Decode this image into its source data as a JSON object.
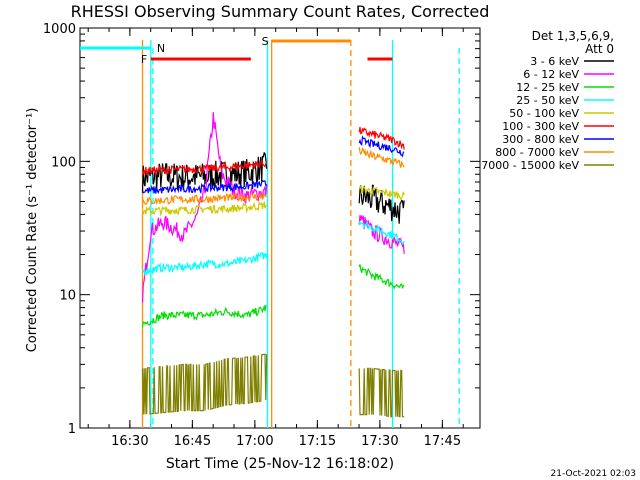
{
  "chart_data": {
    "type": "line",
    "title": "RHESSI Observing Summary Count Rates, Corrected",
    "xlabel": "Start Time (25-Nov-12 16:18:02)",
    "ylabel": "Corrected Count Rate (s⁻¹ detector⁻¹)",
    "yscale": "log",
    "ylim": [
      1,
      1000
    ],
    "xlim_minutes_after_16_18_02": [
      0,
      96
    ],
    "x_tick_labels": [
      "16:30",
      "16:45",
      "17:00",
      "17:15",
      "17:30",
      "17:45"
    ],
    "y_tick_labels": [
      "1",
      "10",
      "100",
      "1000"
    ],
    "legend_title": "Det 1,3,5,6,9,",
    "legend_subtitle": "Att 0",
    "legend_position": "right",
    "timestamp": "21-Oct-2021 02:03",
    "flags": [
      {
        "label": "N",
        "color": "#00ffff",
        "segments": [
          [
            0,
            17
          ]
        ]
      },
      {
        "label": "F",
        "color": "#ff0000",
        "segments": [
          [
            17,
            41
          ],
          [
            69,
            75
          ]
        ]
      },
      {
        "label": "S",
        "color": "#ff8c00",
        "segments": [
          [
            46,
            65
          ]
        ]
      }
    ],
    "series": [
      {
        "name": "3 - 6 keV",
        "color": "#000000",
        "seg1": [
          [
            15,
            75
          ],
          [
            20,
            78
          ],
          [
            25,
            76
          ],
          [
            30,
            77
          ],
          [
            35,
            80
          ],
          [
            40,
            82
          ],
          [
            45,
            92
          ]
        ],
        "seg2": [
          [
            67,
            55
          ],
          [
            70,
            52
          ],
          [
            75,
            45
          ],
          [
            78,
            40
          ]
        ]
      },
      {
        "name": "6 - 12 keV",
        "color": "#ff00ff",
        "seg1": [
          [
            15,
            10
          ],
          [
            17,
            30
          ],
          [
            20,
            35
          ],
          [
            25,
            28
          ],
          [
            28,
            38
          ],
          [
            30,
            60
          ],
          [
            32,
            215
          ],
          [
            34,
            80
          ],
          [
            37,
            60
          ],
          [
            40,
            55
          ],
          [
            45,
            60
          ]
        ],
        "seg2": [
          [
            67,
            38
          ],
          [
            70,
            30
          ],
          [
            75,
            25
          ],
          [
            78,
            22
          ]
        ]
      },
      {
        "name": "12 - 25 keV",
        "color": "#00e000",
        "seg1": [
          [
            15,
            6
          ],
          [
            20,
            7
          ],
          [
            25,
            7
          ],
          [
            30,
            7
          ],
          [
            35,
            7.5
          ],
          [
            40,
            7
          ],
          [
            45,
            8
          ]
        ],
        "seg2": [
          [
            67,
            16
          ],
          [
            70,
            14
          ],
          [
            75,
            12
          ],
          [
            78,
            11
          ]
        ]
      },
      {
        "name": "25 - 50 keV",
        "color": "#00ffff",
        "seg1": [
          [
            15,
            15
          ],
          [
            20,
            16
          ],
          [
            25,
            16
          ],
          [
            30,
            17
          ],
          [
            35,
            17
          ],
          [
            40,
            18
          ],
          [
            45,
            20
          ]
        ],
        "seg2": [
          [
            67,
            36
          ],
          [
            70,
            32
          ],
          [
            75,
            28
          ],
          [
            78,
            25
          ]
        ]
      },
      {
        "name": "50 - 100 keV",
        "color": "#ccc800",
        "seg1": [
          [
            15,
            42
          ],
          [
            20,
            43
          ],
          [
            25,
            43
          ],
          [
            30,
            44
          ],
          [
            35,
            44
          ],
          [
            40,
            45
          ],
          [
            45,
            47
          ]
        ],
        "seg2": [
          [
            67,
            62
          ],
          [
            70,
            60
          ],
          [
            75,
            57
          ],
          [
            78,
            55
          ]
        ]
      },
      {
        "name": "100 - 300 keV",
        "color": "#ff0000",
        "seg1": [
          [
            15,
            85
          ],
          [
            20,
            86
          ],
          [
            25,
            87
          ],
          [
            30,
            88
          ],
          [
            35,
            90
          ],
          [
            40,
            93
          ],
          [
            45,
            97
          ]
        ],
        "seg2": [
          [
            67,
            170
          ],
          [
            70,
            160
          ],
          [
            75,
            145
          ],
          [
            78,
            130
          ]
        ]
      },
      {
        "name": "300 - 800 keV",
        "color": "#0000ff",
        "seg1": [
          [
            15,
            60
          ],
          [
            20,
            61
          ],
          [
            25,
            62
          ],
          [
            30,
            63
          ],
          [
            35,
            64
          ],
          [
            40,
            65
          ],
          [
            45,
            68
          ]
        ],
        "seg2": [
          [
            67,
            145
          ],
          [
            70,
            135
          ],
          [
            75,
            125
          ],
          [
            78,
            115
          ]
        ]
      },
      {
        "name": "800 - 7000 keV",
        "color": "#ff8c00",
        "seg1": [
          [
            15,
            50
          ],
          [
            20,
            51
          ],
          [
            25,
            52
          ],
          [
            30,
            52
          ],
          [
            35,
            53
          ],
          [
            40,
            54
          ],
          [
            45,
            55
          ]
        ],
        "seg2": [
          [
            67,
            120
          ],
          [
            70,
            110
          ],
          [
            75,
            100
          ],
          [
            78,
            92
          ]
        ]
      },
      {
        "name": "7000 - 15000 keV",
        "color": "#808000",
        "seg1": [
          [
            15,
            2.8
          ],
          [
            20,
            2.9
          ],
          [
            25,
            3.0
          ],
          [
            30,
            3.0
          ],
          [
            35,
            3.3
          ],
          [
            40,
            3.4
          ],
          [
            45,
            3.6
          ]
        ],
        "seg2": [
          [
            67,
            2.8
          ],
          [
            70,
            2.8
          ],
          [
            75,
            2.7
          ],
          [
            78,
            2.7
          ]
        ]
      }
    ],
    "attenuator_lines": [
      {
        "color": "#ff8c00",
        "minutes": 15
      },
      {
        "color": "#00ffff",
        "minutes": 17
      },
      {
        "color": "#00ffff",
        "minutes": 45
      },
      {
        "color": "#ff8c00",
        "minutes": 46
      },
      {
        "color": "#ff8c00",
        "minutes": 65,
        "dashed": true
      },
      {
        "color": "#00ffff",
        "minutes": 17.5,
        "dashed": true
      },
      {
        "color": "#00ffff",
        "minutes": 75
      },
      {
        "color": "#00ffff",
        "minutes": 91,
        "dashed": true
      }
    ]
  }
}
